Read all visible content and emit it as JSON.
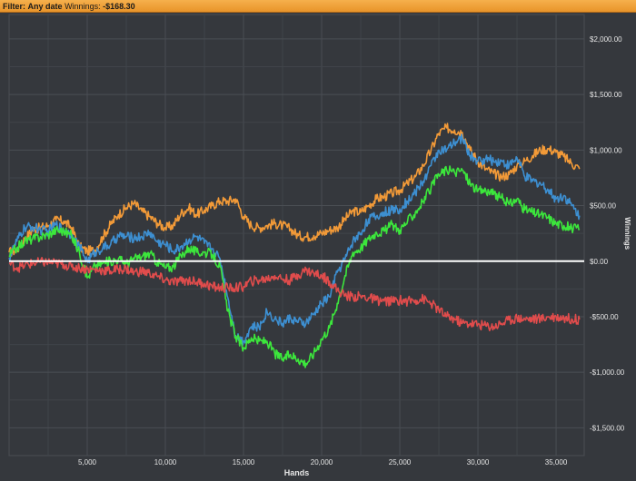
{
  "filter_bar": {
    "filter_label": "Filter:",
    "date_value": "Any date",
    "winnings_label": "Winnings:",
    "winnings_value": "-$168.30"
  },
  "colors": {
    "background": "#35383d",
    "grid": "#4a4e54",
    "axis_text": "#e6e6e6",
    "zero_line": "#ffffff"
  },
  "chart_data": {
    "type": "line",
    "title": "",
    "xlabel": "Hands",
    "ylabel": "Winnings",
    "xlim": [
      0,
      36800
    ],
    "ylim": [
      -1750,
      2220
    ],
    "x_ticks": [
      5000,
      10000,
      15000,
      20000,
      25000,
      30000,
      35000
    ],
    "x_tick_labels": [
      "5,000",
      "10,000",
      "15,000",
      "20,000",
      "25,000",
      "30,000",
      "35,000"
    ],
    "y_ticks": [
      -1500,
      -1000,
      -500,
      0,
      500,
      1000,
      1500,
      2000
    ],
    "y_tick_labels": [
      "-$1,500.00",
      "-$1,000.00",
      "-$500.00",
      "$0.00",
      "$500.00",
      "$1,000.00",
      "$1,500.00",
      "$2,000.00"
    ],
    "grid": true,
    "y_axis_side": "right",
    "series": [
      {
        "color": "#f29a38",
        "x": [
          0,
          500,
          1000,
          1500,
          2000,
          2500,
          3000,
          3500,
          4000,
          4500,
          5000,
          5500,
          6000,
          6500,
          7000,
          7500,
          8000,
          8500,
          9000,
          9500,
          10000,
          10500,
          11000,
          11500,
          12000,
          12500,
          13000,
          13500,
          14000,
          14500,
          15000,
          15500,
          16000,
          16500,
          17000,
          17500,
          18000,
          18500,
          19000,
          19500,
          20000,
          20500,
          21000,
          21500,
          22000,
          22500,
          23000,
          23500,
          24000,
          24500,
          25000,
          25500,
          26000,
          26500,
          27000,
          27500,
          28000,
          28500,
          29000,
          29500,
          30000,
          30500,
          31000,
          31500,
          32000,
          32500,
          33000,
          33500,
          34000,
          34500,
          35000,
          35500,
          36000,
          36500
        ],
        "values": [
          80,
          100,
          200,
          280,
          300,
          320,
          370,
          360,
          300,
          130,
          90,
          100,
          220,
          330,
          420,
          480,
          520,
          450,
          400,
          340,
          300,
          320,
          430,
          480,
          420,
          460,
          500,
          540,
          540,
          560,
          400,
          320,
          300,
          320,
          340,
          320,
          290,
          230,
          220,
          230,
          250,
          280,
          300,
          380,
          450,
          440,
          500,
          560,
          580,
          610,
          640,
          700,
          760,
          860,
          1000,
          1150,
          1200,
          1180,
          1160,
          1000,
          900,
          830,
          790,
          760,
          780,
          860,
          900,
          950,
          1000,
          1010,
          980,
          940,
          880,
          830
        ]
      },
      {
        "color": "#3d8fd1",
        "x": [
          0,
          500,
          1000,
          1500,
          2000,
          2500,
          3000,
          3500,
          4000,
          4500,
          5000,
          5500,
          6000,
          6500,
          7000,
          7500,
          8000,
          8500,
          9000,
          9500,
          10000,
          10500,
          11000,
          11500,
          12000,
          12500,
          13000,
          13500,
          14000,
          14500,
          15000,
          15500,
          16000,
          16500,
          17000,
          17500,
          18000,
          18500,
          19000,
          19500,
          20000,
          20500,
          21000,
          21500,
          22000,
          22500,
          23000,
          23500,
          24000,
          24500,
          25000,
          25500,
          26000,
          26500,
          27000,
          27500,
          28000,
          28500,
          29000,
          29500,
          30000,
          30500,
          31000,
          31500,
          32000,
          32500,
          33000,
          33500,
          34000,
          34500,
          35000,
          35500,
          36000,
          36500
        ],
        "values": [
          30,
          180,
          300,
          310,
          280,
          270,
          330,
          280,
          240,
          130,
          0,
          80,
          120,
          150,
          230,
          220,
          210,
          220,
          260,
          170,
          150,
          90,
          130,
          190,
          220,
          160,
          110,
          20,
          -330,
          -670,
          -720,
          -590,
          -600,
          -450,
          -520,
          -560,
          -510,
          -550,
          -560,
          -480,
          -380,
          -320,
          -100,
          20,
          180,
          250,
          380,
          400,
          440,
          460,
          470,
          540,
          620,
          720,
          860,
          1000,
          1000,
          1060,
          1110,
          950,
          900,
          920,
          900,
          900,
          860,
          930,
          760,
          720,
          700,
          640,
          560,
          590,
          500,
          410
        ]
      },
      {
        "color": "#3ce63c",
        "x": [
          0,
          500,
          1000,
          1500,
          2000,
          2500,
          3000,
          3500,
          4000,
          4500,
          5000,
          5500,
          6000,
          6500,
          7000,
          7500,
          8000,
          8500,
          9000,
          9500,
          10000,
          10500,
          11000,
          11500,
          12000,
          12500,
          13000,
          13500,
          14000,
          14500,
          15000,
          15500,
          16000,
          16500,
          17000,
          17500,
          18000,
          18500,
          19000,
          19500,
          20000,
          20500,
          21000,
          21500,
          22000,
          22500,
          23000,
          23500,
          24000,
          24500,
          25000,
          25500,
          26000,
          26500,
          27000,
          27500,
          28000,
          28500,
          29000,
          29500,
          30000,
          30500,
          31000,
          31500,
          32000,
          32500,
          33000,
          33500,
          34000,
          34500,
          35000,
          35500,
          36000,
          36500
        ],
        "values": [
          50,
          120,
          180,
          200,
          220,
          240,
          280,
          270,
          230,
          80,
          -150,
          -40,
          -20,
          0,
          20,
          -20,
          20,
          40,
          70,
          -10,
          -60,
          -50,
          50,
          120,
          80,
          80,
          60,
          -50,
          -450,
          -680,
          -780,
          -690,
          -720,
          -720,
          -830,
          -880,
          -840,
          -880,
          -920,
          -830,
          -700,
          -600,
          -380,
          -130,
          80,
          120,
          200,
          260,
          270,
          330,
          280,
          360,
          440,
          540,
          660,
          780,
          820,
          800,
          820,
          700,
          630,
          640,
          600,
          570,
          510,
          560,
          460,
          440,
          420,
          390,
          340,
          320,
          300,
          290
        ]
      },
      {
        "color": "#e04c4c",
        "x": [
          0,
          500,
          1000,
          1500,
          2000,
          2500,
          3000,
          3500,
          4000,
          4500,
          5000,
          5500,
          6000,
          6500,
          7000,
          7500,
          8000,
          8500,
          9000,
          9500,
          10000,
          10500,
          11000,
          11500,
          12000,
          12500,
          13000,
          13500,
          14000,
          14500,
          15000,
          15500,
          16000,
          16500,
          17000,
          17500,
          18000,
          18500,
          19000,
          19500,
          20000,
          20500,
          21000,
          21500,
          22000,
          22500,
          23000,
          23500,
          24000,
          24500,
          25000,
          25500,
          26000,
          26500,
          27000,
          27500,
          28000,
          28500,
          29000,
          29500,
          30000,
          30500,
          31000,
          31500,
          32000,
          32500,
          33000,
          33500,
          34000,
          34500,
          35000,
          35500,
          36000,
          36500
        ],
        "values": [
          -20,
          -60,
          -40,
          -20,
          -10,
          -10,
          -20,
          -30,
          -50,
          -60,
          -70,
          -80,
          -80,
          -90,
          -70,
          -70,
          -100,
          -90,
          -110,
          -140,
          -170,
          -190,
          -180,
          -170,
          -190,
          -200,
          -230,
          -240,
          -240,
          -240,
          -230,
          -180,
          -170,
          -160,
          -130,
          -160,
          -170,
          -120,
          -80,
          -110,
          -130,
          -180,
          -260,
          -310,
          -320,
          -320,
          -330,
          -350,
          -360,
          -360,
          -350,
          -360,
          -350,
          -340,
          -380,
          -440,
          -500,
          -520,
          -560,
          -560,
          -570,
          -580,
          -590,
          -560,
          -530,
          -510,
          -520,
          -520,
          -520,
          -500,
          -500,
          -510,
          -520,
          -525
        ]
      }
    ]
  }
}
